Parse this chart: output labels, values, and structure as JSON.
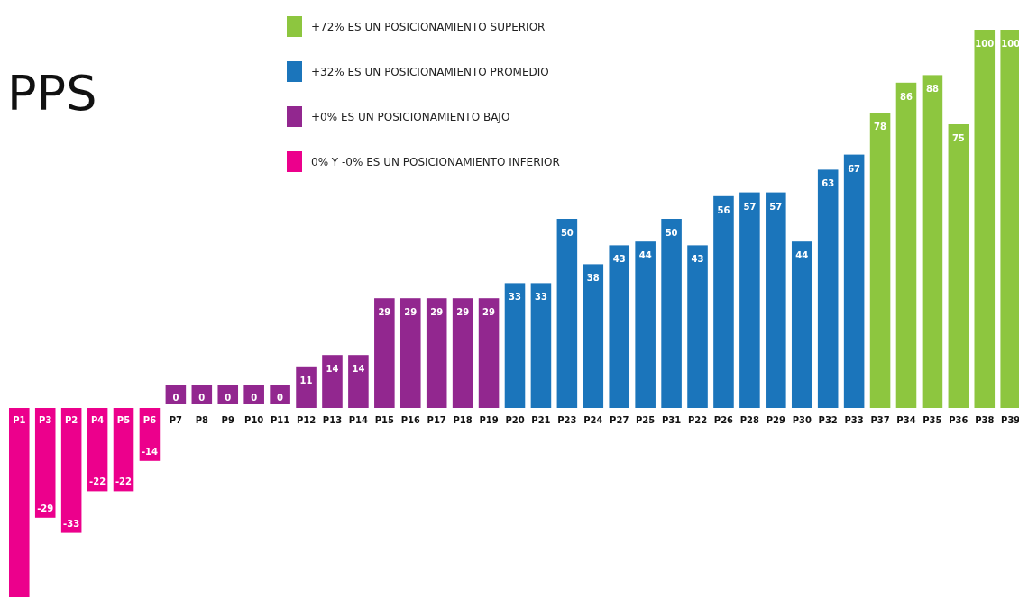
{
  "chart_data": {
    "type": "bar",
    "title": "PPS",
    "legend": "top",
    "categories": [
      "P1",
      "P3",
      "P2",
      "P4",
      "P5",
      "P6",
      "P7",
      "P8",
      "P9",
      "P10",
      "P11",
      "P12",
      "P13",
      "P14",
      "P15",
      "P16",
      "P17",
      "P18",
      "P19",
      "P20",
      "P21",
      "P23",
      "P24",
      "P27",
      "P25",
      "P31",
      "P22",
      "P26",
      "P28",
      "P29",
      "P30",
      "P32",
      "P33",
      "P37",
      "P34",
      "P35",
      "P36",
      "P38",
      "P39"
    ],
    "series": [
      {
        "name": "+72% ES UN POSICIONAMIENTO SUPERIOR",
        "color": "#8dc63f",
        "values": [
          null,
          null,
          null,
          null,
          null,
          null,
          null,
          null,
          null,
          null,
          null,
          null,
          null,
          null,
          null,
          null,
          null,
          null,
          null,
          null,
          null,
          null,
          null,
          null,
          null,
          null,
          null,
          null,
          null,
          null,
          null,
          null,
          null,
          78,
          86,
          88,
          75,
          100,
          100
        ]
      },
      {
        "name": "+32% ES UN POSICIONAMIENTO PROMEDIO",
        "color": "#1b75bb",
        "values": [
          null,
          null,
          null,
          null,
          null,
          null,
          null,
          null,
          null,
          null,
          null,
          null,
          null,
          null,
          null,
          null,
          null,
          null,
          null,
          33,
          33,
          50,
          38,
          43,
          44,
          50,
          43,
          56,
          57,
          57,
          44,
          63,
          67,
          null,
          null,
          null,
          null,
          null,
          null
        ]
      },
      {
        "name": "+0% ES UN POSICIONAMIENTO BAJO",
        "color": "#92278f",
        "values": [
          null,
          null,
          null,
          null,
          null,
          null,
          0,
          0,
          0,
          0,
          0,
          11,
          14,
          14,
          29,
          29,
          29,
          29,
          29,
          null,
          null,
          null,
          null,
          null,
          null,
          null,
          null,
          null,
          null,
          null,
          null,
          null,
          null,
          null,
          null,
          null,
          null,
          null,
          null
        ]
      },
      {
        "name": "0% Y -0% ES UN POSICIONAMIENTO INFERIOR",
        "color": "#ec008c",
        "values": [
          -50,
          -29,
          -33,
          -22,
          -22,
          -14,
          null,
          null,
          null,
          null,
          null,
          null,
          null,
          null,
          null,
          null,
          null,
          null,
          null,
          null,
          null,
          null,
          null,
          null,
          null,
          null,
          null,
          null,
          null,
          null,
          null,
          null,
          null,
          null,
          null,
          null,
          null,
          null,
          null
        ],
        "value_labels": [
          null,
          "-29",
          "-33",
          "-22",
          "-22",
          "-14",
          null,
          null,
          null,
          null,
          null,
          null,
          null,
          null,
          null,
          null,
          null,
          null,
          null,
          null,
          null,
          null,
          null,
          null,
          null,
          null,
          null,
          null,
          null,
          null,
          null,
          null,
          null,
          null,
          null,
          null,
          null,
          null,
          null
        ]
      }
    ],
    "data_labels": true
  }
}
